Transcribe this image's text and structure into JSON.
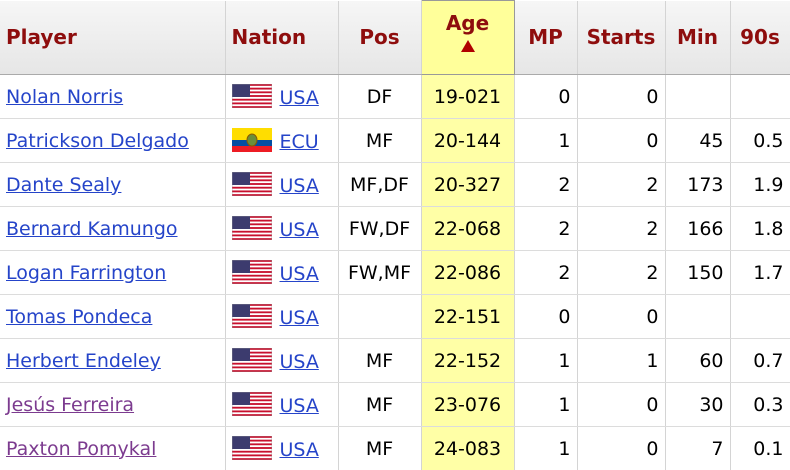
{
  "table": {
    "columns": [
      "Player",
      "Nation",
      "Pos",
      "Age",
      "MP",
      "Starts",
      "Min",
      "90s"
    ],
    "sorted_column": 3,
    "rows": [
      {
        "player": "Nolan Norris",
        "nation": "USA",
        "pos": "DF",
        "age": "19-021",
        "mp": 0,
        "starts": 0,
        "min": null,
        "n90": null,
        "visited": false
      },
      {
        "player": "Patrickson Delgado",
        "nation": "ECU",
        "pos": "MF",
        "age": "20-144",
        "mp": 1,
        "starts": 0,
        "min": 45,
        "n90": 0.5,
        "visited": false
      },
      {
        "player": "Dante Sealy",
        "nation": "USA",
        "pos": "MF,DF",
        "age": "20-327",
        "mp": 2,
        "starts": 2,
        "min": 173,
        "n90": 1.9,
        "visited": false
      },
      {
        "player": "Bernard Kamungo",
        "nation": "USA",
        "pos": "FW,DF",
        "age": "22-068",
        "mp": 2,
        "starts": 2,
        "min": 166,
        "n90": 1.8,
        "visited": false
      },
      {
        "player": "Logan Farrington",
        "nation": "USA",
        "pos": "FW,MF",
        "age": "22-086",
        "mp": 2,
        "starts": 2,
        "min": 150,
        "n90": 1.7,
        "visited": false
      },
      {
        "player": "Tomas Pondeca",
        "nation": "USA",
        "pos": null,
        "age": "22-151",
        "mp": 0,
        "starts": 0,
        "min": null,
        "n90": null,
        "visited": false
      },
      {
        "player": "Herbert Endeley",
        "nation": "USA",
        "pos": "MF",
        "age": "22-152",
        "mp": 1,
        "starts": 1,
        "min": 60,
        "n90": 0.7,
        "visited": false
      },
      {
        "player": "Jesús Ferreira",
        "nation": "USA",
        "pos": "MF",
        "age": "23-076",
        "mp": 1,
        "starts": 0,
        "min": 30,
        "n90": 0.3,
        "visited": true
      },
      {
        "player": "Paxton Pomykal",
        "nation": "USA",
        "pos": "MF",
        "age": "24-083",
        "mp": 1,
        "starts": 0,
        "min": 7,
        "n90": 0.1,
        "visited": true
      }
    ]
  }
}
